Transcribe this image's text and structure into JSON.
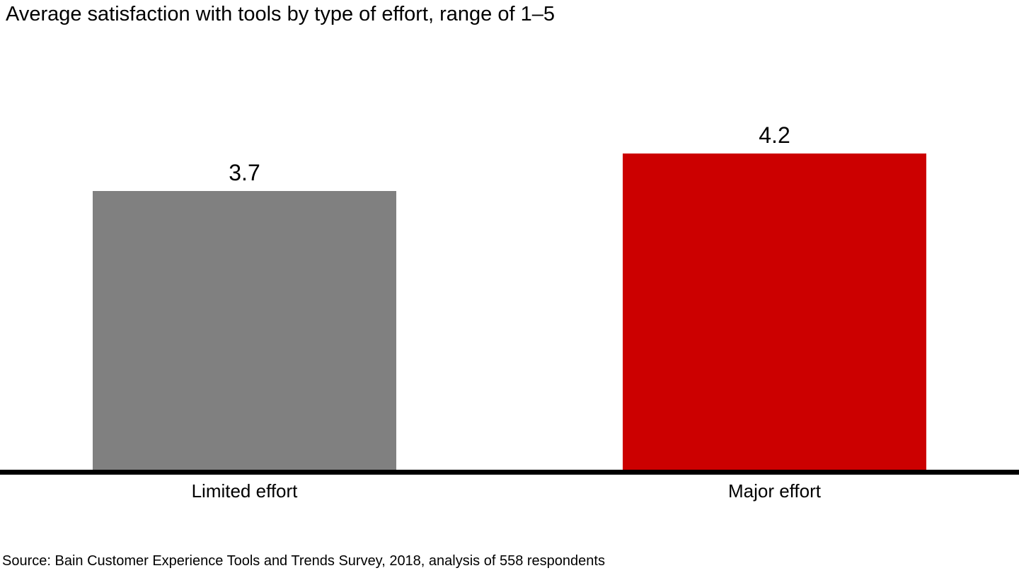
{
  "title": "Average satisfaction with tools by type of effort, range of 1–5",
  "source_note": "Source: Bain Customer Experience Tools and Trends Survey, 2018, analysis of 558 respondents",
  "colors": {
    "background": "#ffffff",
    "text": "#000000",
    "axis": "#000000",
    "bar_limited_effort": "#808080",
    "bar_major_effort": "#cc0000"
  },
  "chart_data": {
    "type": "bar",
    "title": "Average satisfaction with tools by type of effort, range of 1–5",
    "categories": [
      "Limited effort",
      "Major effort"
    ],
    "values": [
      3.7,
      4.2
    ],
    "value_labels": [
      "3.7",
      "4.2"
    ],
    "bar_colors": [
      "#808080",
      "#cc0000"
    ],
    "xlabel": "",
    "ylabel": "",
    "ylim": [
      0,
      5
    ],
    "grid": false,
    "legend": "none",
    "y_axis_visible": false,
    "source": "Source: Bain Customer Experience Tools and Trends Survey, 2018, analysis of 558 respondents"
  }
}
